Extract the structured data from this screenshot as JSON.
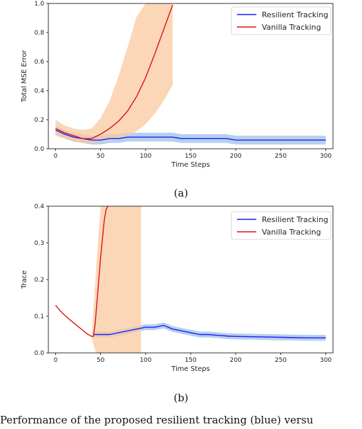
{
  "chart_data": [
    {
      "type": "line",
      "subfigure_label": "(a)",
      "xlabel": "Time Steps",
      "ylabel": "Total MSE Error",
      "xlim": [
        -8,
        308
      ],
      "ylim": [
        0,
        1.0
      ],
      "xticks": [
        0,
        50,
        100,
        150,
        200,
        250,
        300
      ],
      "yticks": [
        0.0,
        0.2,
        0.4,
        0.6,
        0.8,
        1.0
      ],
      "ytick_labels": [
        "0.0",
        "0.2",
        "0.4",
        "0.6",
        "0.8",
        "1.0"
      ],
      "legend_position": "top-right",
      "series": [
        {
          "name": "Resilient Tracking",
          "color": "#1a1aff",
          "band_color": "#9ec0e6",
          "x": [
            0,
            10,
            20,
            30,
            40,
            50,
            60,
            70,
            80,
            90,
            100,
            110,
            120,
            130,
            140,
            150,
            160,
            170,
            180,
            190,
            200,
            210,
            220,
            230,
            240,
            250,
            260,
            270,
            280,
            290,
            300
          ],
          "y": [
            0.13,
            0.1,
            0.08,
            0.07,
            0.06,
            0.06,
            0.07,
            0.07,
            0.08,
            0.08,
            0.08,
            0.08,
            0.08,
            0.08,
            0.07,
            0.07,
            0.07,
            0.07,
            0.07,
            0.07,
            0.06,
            0.06,
            0.06,
            0.06,
            0.06,
            0.06,
            0.06,
            0.06,
            0.06,
            0.06,
            0.06
          ],
          "band_half_width": 0.03
        },
        {
          "name": "Vanilla Tracking",
          "color": "#dd1111",
          "band_color": "#f9c9a0",
          "x": [
            0,
            10,
            20,
            30,
            40,
            50,
            60,
            70,
            80,
            90,
            100,
            110,
            120,
            130
          ],
          "y": [
            0.14,
            0.11,
            0.09,
            0.07,
            0.07,
            0.1,
            0.14,
            0.19,
            0.26,
            0.36,
            0.49,
            0.65,
            0.82,
            0.99
          ],
          "band_upper": [
            0.2,
            0.16,
            0.14,
            0.13,
            0.14,
            0.21,
            0.33,
            0.5,
            0.7,
            0.91,
            1.0,
            1.0,
            1.0,
            1.0
          ],
          "band_lower": [
            0.09,
            0.07,
            0.05,
            0.04,
            0.04,
            0.05,
            0.06,
            0.07,
            0.09,
            0.12,
            0.17,
            0.24,
            0.33,
            0.44
          ]
        }
      ]
    },
    {
      "type": "line",
      "subfigure_label": "(b)",
      "xlabel": "Time Steps",
      "ylabel": "Trace",
      "xlim": [
        -8,
        308
      ],
      "ylim": [
        0,
        0.4
      ],
      "xticks": [
        0,
        50,
        100,
        150,
        200,
        250,
        300
      ],
      "yticks": [
        0.0,
        0.1,
        0.2,
        0.3,
        0.4
      ],
      "ytick_labels": [
        "0.0",
        "0.1",
        "0.2",
        "0.3",
        "0.4"
      ],
      "legend_position": "top-right",
      "series": [
        {
          "name": "Resilient Tracking",
          "color": "#1a1aff",
          "band_color": "#9ec0e6",
          "x": [
            43,
            50,
            60,
            70,
            80,
            90,
            100,
            110,
            120,
            130,
            140,
            150,
            160,
            170,
            180,
            190,
            200,
            220,
            240,
            260,
            280,
            300
          ],
          "y": [
            0.05,
            0.05,
            0.05,
            0.055,
            0.06,
            0.065,
            0.07,
            0.07,
            0.075,
            0.065,
            0.06,
            0.055,
            0.05,
            0.05,
            0.048,
            0.046,
            0.045,
            0.044,
            0.043,
            0.042,
            0.041,
            0.041
          ],
          "band_half_width": 0.008
        },
        {
          "name": "Vanilla Tracking",
          "color": "#dd1111",
          "band_color": "#f9c9a0",
          "x": [
            0,
            5,
            10,
            15,
            20,
            25,
            30,
            35,
            40,
            42,
            44,
            46,
            48,
            50,
            52,
            54,
            56,
            58
          ],
          "y": [
            0.13,
            0.115,
            0.103,
            0.092,
            0.082,
            0.072,
            0.062,
            0.052,
            0.045,
            0.045,
            0.08,
            0.14,
            0.2,
            0.26,
            0.31,
            0.36,
            0.39,
            0.4
          ],
          "band_x": [
            40,
            45,
            50,
            55,
            60,
            65,
            70,
            75,
            80,
            85,
            90,
            95
          ],
          "band_upper": [
            0.04,
            0.23,
            0.4,
            0.4,
            0.4,
            0.4,
            0.4,
            0.4,
            0.4,
            0.4,
            0.4,
            0.4
          ],
          "band_lower": [
            0.04,
            0.0,
            0.0,
            0.0,
            0.0,
            0.0,
            0.0,
            0.0,
            0.0,
            0.0,
            0.0,
            0.0
          ]
        }
      ]
    }
  ],
  "caption": "Performance of the proposed resilient tracking (blue) versu"
}
